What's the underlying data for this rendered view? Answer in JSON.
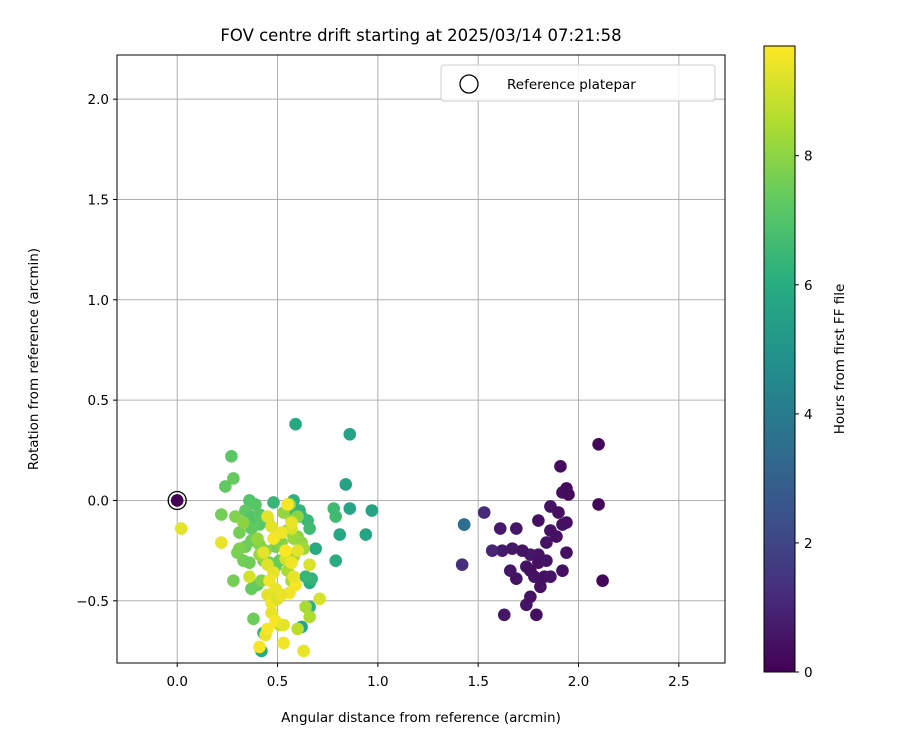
{
  "chart_data": {
    "type": "scatter",
    "title": "FOV centre drift starting at 2025/03/14 07:21:58",
    "xlabel": "Angular distance from reference (arcmin)",
    "ylabel": "Rotation from reference (arcmin)",
    "xlim": [
      -0.3,
      2.73
    ],
    "ylim": [
      -0.81,
      2.22
    ],
    "xticks": [
      "0.0",
      "0.5",
      "1.0",
      "1.5",
      "2.0",
      "2.5"
    ],
    "yticks": [
      "−0.5",
      "0.0",
      "0.5",
      "1.0",
      "1.5",
      "2.0"
    ],
    "grid": true,
    "legend": {
      "position": "top-right",
      "entries": [
        "Reference platepar"
      ]
    },
    "colorbar": {
      "label": "Hours from first FF file",
      "colormap": "viridis",
      "range": [
        0,
        9.7
      ],
      "ticks": [
        "0",
        "2",
        "4",
        "6",
        "8"
      ]
    },
    "reference_point": {
      "x": 0.0,
      "y": 0.0,
      "hours": 0.0
    },
    "points": [
      [
        1.91,
        0.17,
        0.3
      ],
      [
        1.94,
        0.06,
        0.3
      ],
      [
        1.92,
        0.04,
        0.4
      ],
      [
        1.95,
        0.03,
        0.3
      ],
      [
        1.86,
        -0.03,
        0.5
      ],
      [
        1.9,
        -0.06,
        0.4
      ],
      [
        1.92,
        -0.12,
        0.5
      ],
      [
        1.94,
        -0.11,
        0.4
      ],
      [
        1.86,
        -0.15,
        0.5
      ],
      [
        1.8,
        -0.1,
        0.4
      ],
      [
        1.84,
        -0.21,
        0.5
      ],
      [
        1.89,
        -0.18,
        0.4
      ],
      [
        1.94,
        -0.26,
        0.4
      ],
      [
        1.8,
        -0.27,
        0.5
      ],
      [
        1.76,
        -0.27,
        0.6
      ],
      [
        1.72,
        -0.25,
        0.5
      ],
      [
        1.67,
        -0.24,
        0.6
      ],
      [
        1.62,
        -0.25,
        0.7
      ],
      [
        1.57,
        -0.25,
        1.0
      ],
      [
        1.61,
        -0.14,
        0.7
      ],
      [
        1.69,
        -0.14,
        0.6
      ],
      [
        1.53,
        -0.06,
        1.1
      ],
      [
        1.74,
        -0.33,
        0.5
      ],
      [
        1.8,
        -0.31,
        0.4
      ],
      [
        1.84,
        -0.3,
        0.5
      ],
      [
        1.76,
        -0.35,
        0.4
      ],
      [
        1.66,
        -0.35,
        0.6
      ],
      [
        1.69,
        -0.39,
        0.5
      ],
      [
        1.78,
        -0.38,
        0.5
      ],
      [
        1.83,
        -0.38,
        0.4
      ],
      [
        1.81,
        -0.43,
        0.4
      ],
      [
        1.86,
        -0.38,
        0.5
      ],
      [
        1.92,
        -0.35,
        0.4
      ],
      [
        1.76,
        -0.48,
        0.5
      ],
      [
        1.74,
        -0.52,
        0.5
      ],
      [
        1.79,
        -0.57,
        0.4
      ],
      [
        1.63,
        -0.57,
        0.6
      ],
      [
        2.1,
        0.28,
        0.2
      ],
      [
        2.1,
        -0.02,
        0.2
      ],
      [
        2.12,
        -0.4,
        0.2
      ],
      [
        1.43,
        -0.12,
        3.8
      ],
      [
        1.43,
        -0.12,
        3.5
      ],
      [
        1.42,
        -0.32,
        1.3
      ],
      [
        0.59,
        0.38,
        5.8
      ],
      [
        0.86,
        0.33,
        5.6
      ],
      [
        0.84,
        0.08,
        5.5
      ],
      [
        0.86,
        -0.04,
        5.6
      ],
      [
        0.97,
        -0.05,
        5.6
      ],
      [
        0.94,
        -0.17,
        5.7
      ],
      [
        0.81,
        -0.17,
        5.8
      ],
      [
        0.79,
        -0.3,
        6.0
      ],
      [
        0.78,
        -0.04,
        6.6
      ],
      [
        0.79,
        -0.08,
        6.6
      ],
      [
        0.69,
        -0.24,
        5.9
      ],
      [
        0.66,
        -0.41,
        6.0
      ],
      [
        0.67,
        -0.39,
        6.3
      ],
      [
        0.64,
        -0.38,
        6.4
      ],
      [
        0.66,
        -0.53,
        6.2
      ],
      [
        0.62,
        -0.63,
        5.7
      ],
      [
        0.42,
        -0.75,
        6.0
      ],
      [
        0.43,
        -0.66,
        6.2
      ],
      [
        0.58,
        0.0,
        6.2
      ],
      [
        0.61,
        -0.05,
        6.3
      ],
      [
        0.62,
        -0.08,
        6.4
      ],
      [
        0.65,
        -0.1,
        6.5
      ],
      [
        0.66,
        -0.14,
        6.6
      ],
      [
        0.48,
        -0.01,
        6.4
      ],
      [
        0.55,
        -0.05,
        6.6
      ],
      [
        0.27,
        0.22,
        7.2
      ],
      [
        0.28,
        0.11,
        7.4
      ],
      [
        0.24,
        0.07,
        7.3
      ],
      [
        0.36,
        0.0,
        7.0
      ],
      [
        0.39,
        -0.02,
        7.1
      ],
      [
        0.34,
        -0.05,
        7.3
      ],
      [
        0.37,
        -0.08,
        7.0
      ],
      [
        0.41,
        -0.07,
        7.2
      ],
      [
        0.45,
        -0.1,
        7.5
      ],
      [
        0.41,
        -0.12,
        7.2
      ],
      [
        0.37,
        -0.14,
        7.3
      ],
      [
        0.31,
        -0.16,
        7.6
      ],
      [
        0.37,
        -0.2,
        7.5
      ],
      [
        0.41,
        -0.22,
        7.8
      ],
      [
        0.34,
        -0.23,
        7.5
      ],
      [
        0.31,
        -0.24,
        7.8
      ],
      [
        0.3,
        -0.26,
        7.7
      ],
      [
        0.33,
        -0.3,
        7.6
      ],
      [
        0.36,
        -0.31,
        7.5
      ],
      [
        0.43,
        -0.3,
        7.8
      ],
      [
        0.46,
        -0.31,
        7.6
      ],
      [
        0.49,
        -0.33,
        7.6
      ],
      [
        0.51,
        -0.3,
        7.4
      ],
      [
        0.49,
        -0.23,
        7.7
      ],
      [
        0.52,
        -0.21,
        7.9
      ],
      [
        0.44,
        -0.25,
        8.0
      ],
      [
        0.4,
        -0.19,
        8.1
      ],
      [
        0.41,
        -0.27,
        8.2
      ],
      [
        0.4,
        -0.42,
        7.3
      ],
      [
        0.37,
        -0.44,
        7.4
      ],
      [
        0.28,
        -0.4,
        7.6
      ],
      [
        0.42,
        -0.4,
        7.8
      ],
      [
        0.38,
        -0.59,
        7.5
      ],
      [
        0.55,
        -0.15,
        7.9
      ],
      [
        0.57,
        -0.1,
        8.0
      ],
      [
        0.53,
        -0.06,
        8.1
      ],
      [
        0.56,
        -0.02,
        8.2
      ],
      [
        0.6,
        -0.08,
        8.0
      ],
      [
        0.6,
        -0.18,
        8.0
      ],
      [
        0.58,
        -0.19,
        8.2
      ],
      [
        0.62,
        -0.21,
        8.1
      ],
      [
        0.22,
        -0.07,
        7.6
      ],
      [
        0.29,
        -0.08,
        7.8
      ],
      [
        0.33,
        -0.11,
        8.0
      ],
      [
        0.58,
        -0.28,
        8.3
      ],
      [
        0.63,
        -0.24,
        8.3
      ],
      [
        0.57,
        -0.4,
        8.3
      ],
      [
        0.64,
        -0.53,
        8.4
      ],
      [
        0.66,
        -0.58,
        8.5
      ],
      [
        0.6,
        -0.64,
        8.7
      ],
      [
        0.51,
        -0.62,
        8.8
      ],
      [
        0.55,
        -0.35,
        8.4
      ],
      [
        0.02,
        -0.14,
        9.3
      ],
      [
        0.22,
        -0.21,
        9.4
      ],
      [
        0.36,
        -0.38,
        9.1
      ],
      [
        0.43,
        -0.26,
        9.3
      ],
      [
        0.45,
        -0.32,
        9.2
      ],
      [
        0.48,
        -0.36,
        9.4
      ],
      [
        0.46,
        -0.4,
        9.5
      ],
      [
        0.49,
        -0.44,
        9.4
      ],
      [
        0.45,
        -0.47,
        9.3
      ],
      [
        0.47,
        -0.51,
        9.5
      ],
      [
        0.5,
        -0.49,
        9.2
      ],
      [
        0.47,
        -0.56,
        9.4
      ],
      [
        0.49,
        -0.6,
        9.6
      ],
      [
        0.53,
        -0.62,
        9.3
      ],
      [
        0.44,
        -0.67,
        9.4
      ],
      [
        0.53,
        -0.71,
        9.5
      ],
      [
        0.41,
        -0.73,
        9.6
      ],
      [
        0.45,
        -0.64,
        9.6
      ],
      [
        0.63,
        -0.75,
        9.4
      ],
      [
        0.54,
        -0.29,
        9.1
      ],
      [
        0.6,
        -0.25,
        9.3
      ],
      [
        0.57,
        -0.31,
        9.5
      ],
      [
        0.59,
        -0.42,
        9.6
      ],
      [
        0.56,
        -0.46,
        9.5
      ],
      [
        0.52,
        -0.47,
        9.4
      ],
      [
        0.57,
        -0.14,
        9.2
      ],
      [
        0.57,
        -0.11,
        9.4
      ],
      [
        0.45,
        -0.08,
        9.3
      ],
      [
        0.48,
        -0.19,
        9.6
      ],
      [
        0.52,
        -0.16,
        9.5
      ],
      [
        0.47,
        -0.13,
        9.3
      ],
      [
        0.66,
        -0.32,
        9.2
      ],
      [
        0.71,
        -0.49,
        9.1
      ],
      [
        0.55,
        -0.02,
        9.6
      ],
      [
        0.54,
        -0.25,
        9.7
      ],
      [
        0.58,
        -0.38,
        9.4
      ]
    ]
  }
}
